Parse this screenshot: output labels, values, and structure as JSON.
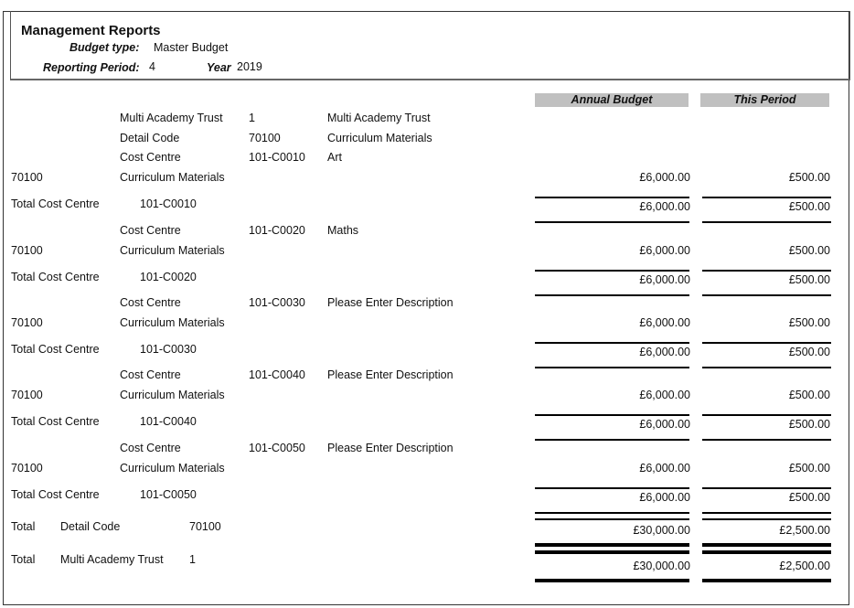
{
  "header": {
    "title": "Management Reports",
    "budget_type_label": "Budget type:",
    "budget_type": "Master Budget",
    "period_label": "Reporting Period:",
    "period": "4",
    "year_label": "Year",
    "year": "2019"
  },
  "columns": {
    "annual": "Annual Budget",
    "period": "This Period"
  },
  "top": [
    {
      "a": "Multi Academy Trust",
      "b": "1",
      "c": "Multi Academy Trust"
    },
    {
      "a": "Detail Code",
      "b": "70100",
      "c": "Curriculum Materials"
    }
  ],
  "groups": [
    {
      "cc_label": "Cost Centre",
      "cc": "101-C0010",
      "cc_desc": "Art",
      "code": "70100",
      "desc": "Curriculum Materials",
      "annual": "£6,000.00",
      "period": "£500.00",
      "total_label": "Total Cost Centre",
      "total_annual": "£6,000.00",
      "total_period": "£500.00"
    },
    {
      "cc_label": "Cost Centre",
      "cc": "101-C0020",
      "cc_desc": "Maths",
      "code": "70100",
      "desc": "Curriculum Materials",
      "annual": "£6,000.00",
      "period": "£500.00",
      "total_label": "Total Cost Centre",
      "total_annual": "£6,000.00",
      "total_period": "£500.00"
    },
    {
      "cc_label": "Cost Centre",
      "cc": "101-C0030",
      "cc_desc": "Please Enter Description",
      "code": "70100",
      "desc": "Curriculum Materials",
      "annual": "£6,000.00",
      "period": "£500.00",
      "total_label": "Total Cost Centre",
      "total_annual": "£6,000.00",
      "total_period": "£500.00"
    },
    {
      "cc_label": "Cost Centre",
      "cc": "101-C0040",
      "cc_desc": "Please Enter Description",
      "code": "70100",
      "desc": "Curriculum Materials",
      "annual": "£6,000.00",
      "period": "£500.00",
      "total_label": "Total Cost Centre",
      "total_annual": "£6,000.00",
      "total_period": "£500.00"
    },
    {
      "cc_label": "Cost Centre",
      "cc": "101-C0050",
      "cc_desc": "Please Enter Description",
      "code": "70100",
      "desc": "Curriculum Materials",
      "annual": "£6,000.00",
      "period": "£500.00",
      "total_label": "Total Cost Centre",
      "total_annual": "£6,000.00",
      "total_period": "£500.00"
    }
  ],
  "totals": [
    {
      "label": "Total",
      "kind": "Detail Code",
      "code": "70100",
      "annual": "£30,000.00",
      "period": "£2,500.00"
    },
    {
      "label": "Total",
      "kind": "Multi Academy Trust",
      "code": "1",
      "annual": "£30,000.00",
      "period": "£2,500.00"
    }
  ]
}
